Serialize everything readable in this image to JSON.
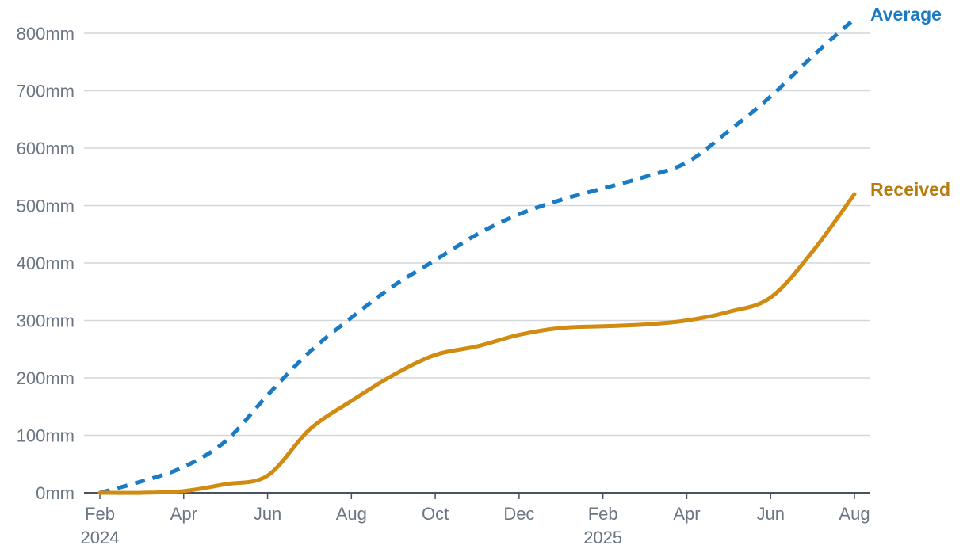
{
  "chart_data": {
    "type": "line",
    "title": "",
    "xlabel": "",
    "ylabel": "",
    "y_unit": "mm",
    "ylim": [
      0,
      800
    ],
    "y_ticks": [
      0,
      100,
      200,
      300,
      400,
      500,
      600,
      700,
      800
    ],
    "y_tick_labels": [
      "0mm",
      "100mm",
      "200mm",
      "300mm",
      "400mm",
      "500mm",
      "600mm",
      "700mm",
      "800mm"
    ],
    "grid": true,
    "legend": "direct labels at line ends (right)",
    "x_ticks": [
      {
        "month": 0,
        "label": "Feb",
        "year": "2024"
      },
      {
        "month": 2,
        "label": "Apr",
        "year": ""
      },
      {
        "month": 4,
        "label": "Jun",
        "year": ""
      },
      {
        "month": 6,
        "label": "Aug",
        "year": ""
      },
      {
        "month": 8,
        "label": "Oct",
        "year": ""
      },
      {
        "month": 10,
        "label": "Dec",
        "year": ""
      },
      {
        "month": 12,
        "label": "Feb",
        "year": "2025"
      },
      {
        "month": 14,
        "label": "Apr",
        "year": ""
      },
      {
        "month": 16,
        "label": "Jun",
        "year": ""
      },
      {
        "month": 18,
        "label": "Aug",
        "year": ""
      }
    ],
    "x": [
      "2024-02",
      "2024-03",
      "2024-04",
      "2024-05",
      "2024-06",
      "2024-07",
      "2024-08",
      "2024-09",
      "2024-10",
      "2024-11",
      "2024-12",
      "2025-01",
      "2025-02",
      "2025-03",
      "2025-04",
      "2025-05",
      "2025-06",
      "2025-07",
      "2025-08"
    ],
    "series": [
      {
        "name": "Average",
        "color": "#1a7bc4",
        "style": "dashed",
        "values": [
          0,
          20,
          45,
          90,
          170,
          245,
          305,
          360,
          405,
          450,
          485,
          510,
          530,
          550,
          575,
          630,
          690,
          760,
          825
        ]
      },
      {
        "name": "Received",
        "color": "#d08b10",
        "label_color": "#b87b0c",
        "style": "solid",
        "values": [
          0,
          0,
          3,
          15,
          30,
          110,
          160,
          205,
          240,
          255,
          275,
          287,
          290,
          293,
          300,
          315,
          340,
          420,
          520
        ]
      }
    ]
  }
}
